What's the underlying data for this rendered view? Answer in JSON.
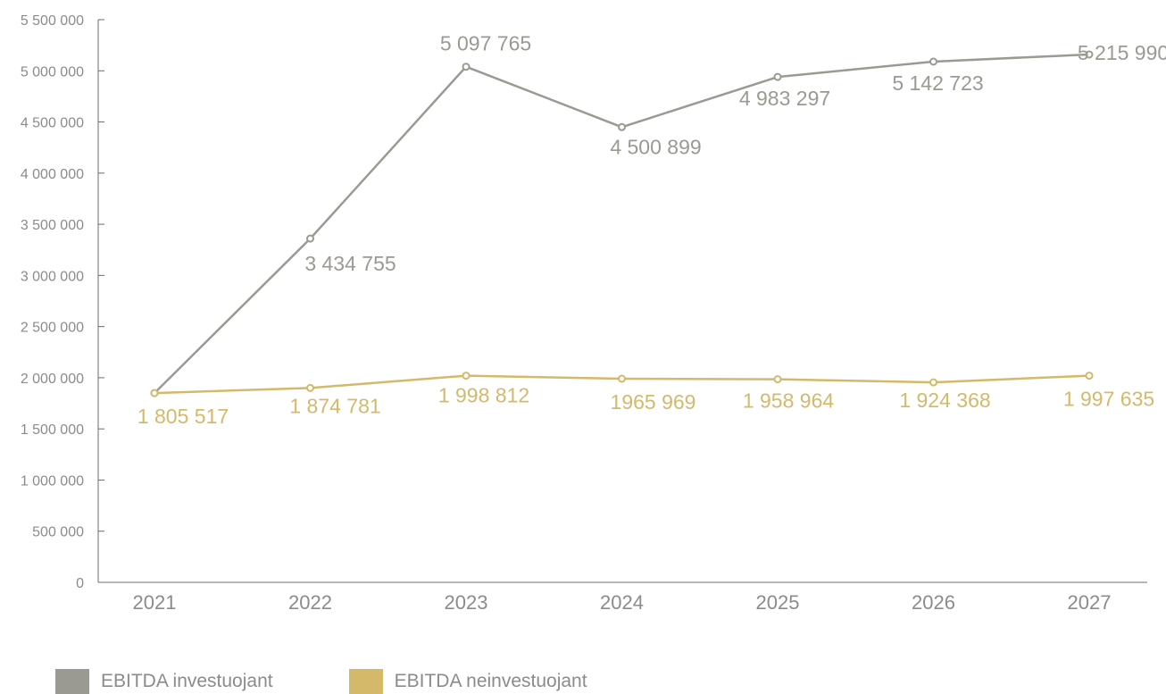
{
  "chart_data": {
    "type": "line",
    "categories": [
      "2021",
      "2022",
      "2023",
      "2024",
      "2025",
      "2026",
      "2027"
    ],
    "ylim": [
      0,
      5500000
    ],
    "y_ticks": [
      0,
      500000,
      1000000,
      1500000,
      2000000,
      2500000,
      3000000,
      3500000,
      4000000,
      4500000,
      5000000,
      5500000
    ],
    "y_tick_labels": [
      "0",
      "500 000",
      "1 000 000",
      "1 500 000",
      "2 000 000",
      "2 500 000",
      "3 000 000",
      "3 500 000",
      "4 000 000",
      "4 500 000",
      "5 000 000",
      "5 500 000"
    ],
    "grid": false,
    "legend_position": "bottom-left",
    "series": [
      {
        "name": "EBITDA investuojant",
        "color": "#9b9a92",
        "values": [
          1850000,
          3360000,
          5040000,
          4450000,
          4940000,
          5090000,
          5160000
        ],
        "labels": [
          "",
          "3 434 755",
          "5 097 765",
          "4 500 899",
          "4 983 297",
          "5 142 723",
          "5 215 990"
        ]
      },
      {
        "name": "EBITDA neinvestuojant",
        "color": "#d4b96b",
        "values": [
          1850000,
          1900000,
          2020000,
          1990000,
          1985000,
          1955000,
          2020000
        ],
        "labels": [
          "1 805 517",
          "1 874 781",
          "1 998 812",
          "1965 969",
          "1 958 964",
          "1 924 368",
          "1 997 635"
        ]
      }
    ]
  }
}
